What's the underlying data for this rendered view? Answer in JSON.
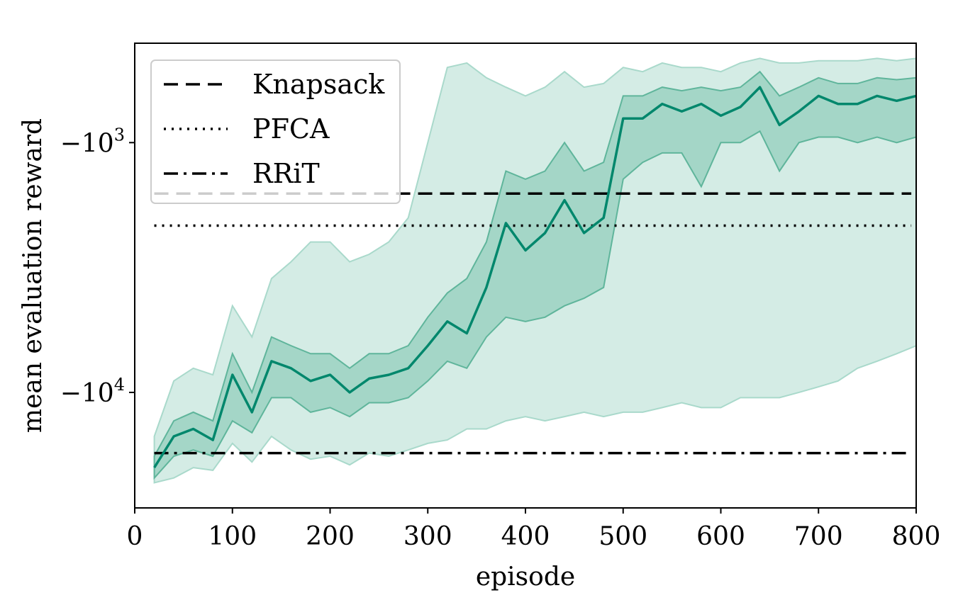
{
  "chart_data": {
    "type": "line",
    "title": "",
    "xlabel": "episode",
    "ylabel": "mean evaluation reward",
    "xlim": [
      0,
      800
    ],
    "yscale": "symlog-negative",
    "ylim": [
      -29000,
      -400
    ],
    "xticks": [
      {
        "value": 0,
        "label": "0"
      },
      {
        "value": 100,
        "label": "100"
      },
      {
        "value": 200,
        "label": "200"
      },
      {
        "value": 300,
        "label": "300"
      },
      {
        "value": 400,
        "label": "400"
      },
      {
        "value": 500,
        "label": "500"
      },
      {
        "value": 600,
        "label": "600"
      },
      {
        "value": 700,
        "label": "700"
      },
      {
        "value": 800,
        "label": "800"
      }
    ],
    "yticks": [
      {
        "value": -1000,
        "base": "−10",
        "exp": "3"
      },
      {
        "value": -10000,
        "base": "−10",
        "exp": "4"
      }
    ],
    "legend": {
      "placement": "top-left",
      "entries": [
        {
          "label": "Knapsack",
          "style": "dashed"
        },
        {
          "label": "PFCA",
          "style": "dotted"
        },
        {
          "label": "RRiT",
          "style": "dashdot"
        }
      ]
    },
    "baselines": [
      {
        "name": "Knapsack",
        "value": -1600,
        "style": "dashed",
        "color": "#000000"
      },
      {
        "name": "PFCA",
        "value": -2150,
        "style": "dotted",
        "color": "#000000"
      },
      {
        "name": "RRiT",
        "value": -17500,
        "style": "dashdot",
        "color": "#000000"
      }
    ],
    "series": [
      {
        "name": "mean",
        "color": "#00876c",
        "outer_band_color": "#a9d9cb",
        "inner_band_color": "#7cc4ae",
        "x": [
          20,
          40,
          60,
          80,
          100,
          120,
          140,
          160,
          180,
          200,
          220,
          240,
          260,
          280,
          300,
          320,
          340,
          360,
          380,
          400,
          420,
          440,
          460,
          480,
          500,
          520,
          540,
          560,
          580,
          600,
          620,
          640,
          660,
          680,
          700,
          720,
          740,
          760,
          780,
          800
        ],
        "mean": [
          -20000,
          -15000,
          -14000,
          -15500,
          -8500,
          -12000,
          -7500,
          -8000,
          -9000,
          -8500,
          -10000,
          -8800,
          -8500,
          -8000,
          -6500,
          -5200,
          -5800,
          -3800,
          -2100,
          -2700,
          -2300,
          -1700,
          -2300,
          -2000,
          -800,
          -800,
          -700,
          -750,
          -700,
          -780,
          -720,
          -600,
          -850,
          -750,
          -650,
          -700,
          -700,
          -650,
          -680,
          -650
        ],
        "inner_low": [
          -22000,
          -18000,
          -17000,
          -18000,
          -13000,
          -14500,
          -10500,
          -10500,
          -12000,
          -11500,
          -12500,
          -11000,
          -11000,
          -10500,
          -9000,
          -7500,
          -8000,
          -6000,
          -5000,
          -5200,
          -5000,
          -4500,
          -4200,
          -3800,
          -1400,
          -1200,
          -1100,
          -1100,
          -1500,
          -1000,
          -1000,
          -900,
          -1300,
          -1000,
          -950,
          -950,
          -1000,
          -950,
          -1000,
          -950
        ],
        "inner_high": [
          -18000,
          -13000,
          -12000,
          -13000,
          -7000,
          -10000,
          -6000,
          -6500,
          -7000,
          -7000,
          -8000,
          -7000,
          -7000,
          -6500,
          -5000,
          -4000,
          -3500,
          -2500,
          -1300,
          -1400,
          -1300,
          -1000,
          -1300,
          -1200,
          -650,
          -650,
          -600,
          -620,
          -600,
          -620,
          -600,
          -520,
          -650,
          -600,
          -550,
          -580,
          -580,
          -550,
          -560,
          -550
        ],
        "outer_low": [
          -23000,
          -22000,
          -20000,
          -20500,
          -16000,
          -19000,
          -15000,
          -17000,
          -18500,
          -18000,
          -19500,
          -17500,
          -18000,
          -17000,
          -16000,
          -15500,
          -14000,
          -14000,
          -13000,
          -12500,
          -13000,
          -12500,
          -12000,
          -12500,
          -12000,
          -12000,
          -11500,
          -11000,
          -11500,
          -11500,
          -10500,
          -10500,
          -10500,
          -10000,
          -9500,
          -9000,
          -8000,
          -7500,
          -7000,
          -6500
        ],
        "outer_high": [
          -15000,
          -9000,
          -8000,
          -8500,
          -4500,
          -6000,
          -3500,
          -3000,
          -2500,
          -2500,
          -3000,
          -2800,
          -2500,
          -2000,
          -1000,
          -500,
          -480,
          -550,
          -600,
          -650,
          -600,
          -520,
          -600,
          -580,
          -500,
          -520,
          -480,
          -500,
          -500,
          -520,
          -480,
          -460,
          -480,
          -480,
          -470,
          -470,
          -470,
          -460,
          -470,
          -460
        ]
      }
    ]
  }
}
